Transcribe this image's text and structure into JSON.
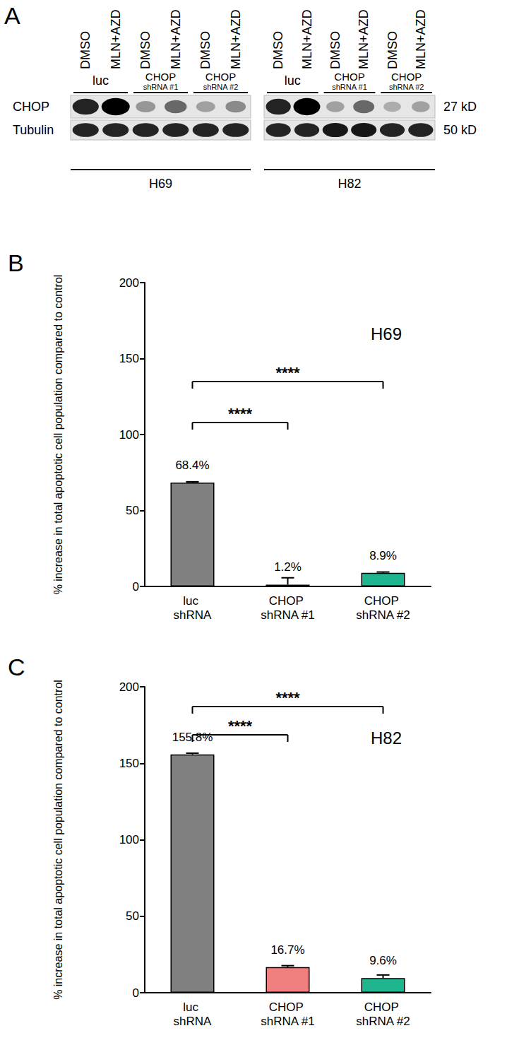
{
  "blot": {
    "panel": "A",
    "lanes": [
      "DMSO",
      "MLN+AZD"
    ],
    "groups": [
      {
        "label": "luc"
      },
      {
        "label": "CHOP",
        "sublabel": "shRNA #1"
      },
      {
        "label": "CHOP",
        "sublabel": "shRNA #2"
      }
    ],
    "rows": [
      {
        "name": "CHOP",
        "size": "27 kD"
      },
      {
        "name": "Tubulin",
        "size": "50 kD"
      }
    ],
    "blots": [
      {
        "cell_line": "H69",
        "intensities": [
          [
            0.85,
            1.0,
            0.35,
            0.55,
            0.3,
            0.4
          ],
          [
            0.85,
            0.85,
            0.85,
            0.85,
            0.85,
            0.85
          ]
        ]
      },
      {
        "cell_line": "H82",
        "intensities": [
          [
            0.85,
            1.0,
            0.3,
            0.55,
            0.25,
            0.3
          ],
          [
            0.85,
            0.85,
            0.9,
            0.9,
            0.85,
            0.85
          ]
        ]
      }
    ]
  },
  "chart_data": [
    {
      "panel": "B",
      "type": "bar",
      "title": "H69",
      "y_label": "% increase in total apoptotic cell population compared to control",
      "categories": [
        "luc shRNA",
        "CHOP shRNA #1",
        "CHOP shRNA #2"
      ],
      "values": [
        68.4,
        1.2,
        8.9
      ],
      "value_labels": [
        "68.4%",
        "1.2%",
        "8.9%"
      ],
      "errors": [
        0.5,
        4.5,
        0.6
      ],
      "colors": [
        "#808080",
        "#f08080",
        "#1fb58f"
      ],
      "ylim": [
        0,
        200
      ],
      "yticks": [
        0,
        50,
        100,
        150,
        200
      ],
      "grid": false,
      "data_labels": true,
      "significance": [
        {
          "from": 0,
          "to": 1,
          "label": "****"
        },
        {
          "from": 0,
          "to": 2,
          "label": "****"
        }
      ]
    },
    {
      "panel": "C",
      "type": "bar",
      "title": "H82",
      "y_label": "% increase in total apoptotic cell population compared to control",
      "categories": [
        "luc shRNA",
        "CHOP shRNA #1",
        "CHOP shRNA #2"
      ],
      "values": [
        155.8,
        16.7,
        9.6
      ],
      "value_labels": [
        "155.8%",
        "16.7%",
        "9.6%"
      ],
      "errors": [
        0.8,
        1.0,
        2.0
      ],
      "colors": [
        "#808080",
        "#f08080",
        "#1fb58f"
      ],
      "ylim": [
        0,
        200
      ],
      "yticks": [
        0,
        50,
        100,
        150,
        200
      ],
      "grid": false,
      "data_labels": true,
      "significance": [
        {
          "from": 0,
          "to": 1,
          "label": "****"
        },
        {
          "from": 0,
          "to": 2,
          "label": "****"
        }
      ]
    }
  ]
}
